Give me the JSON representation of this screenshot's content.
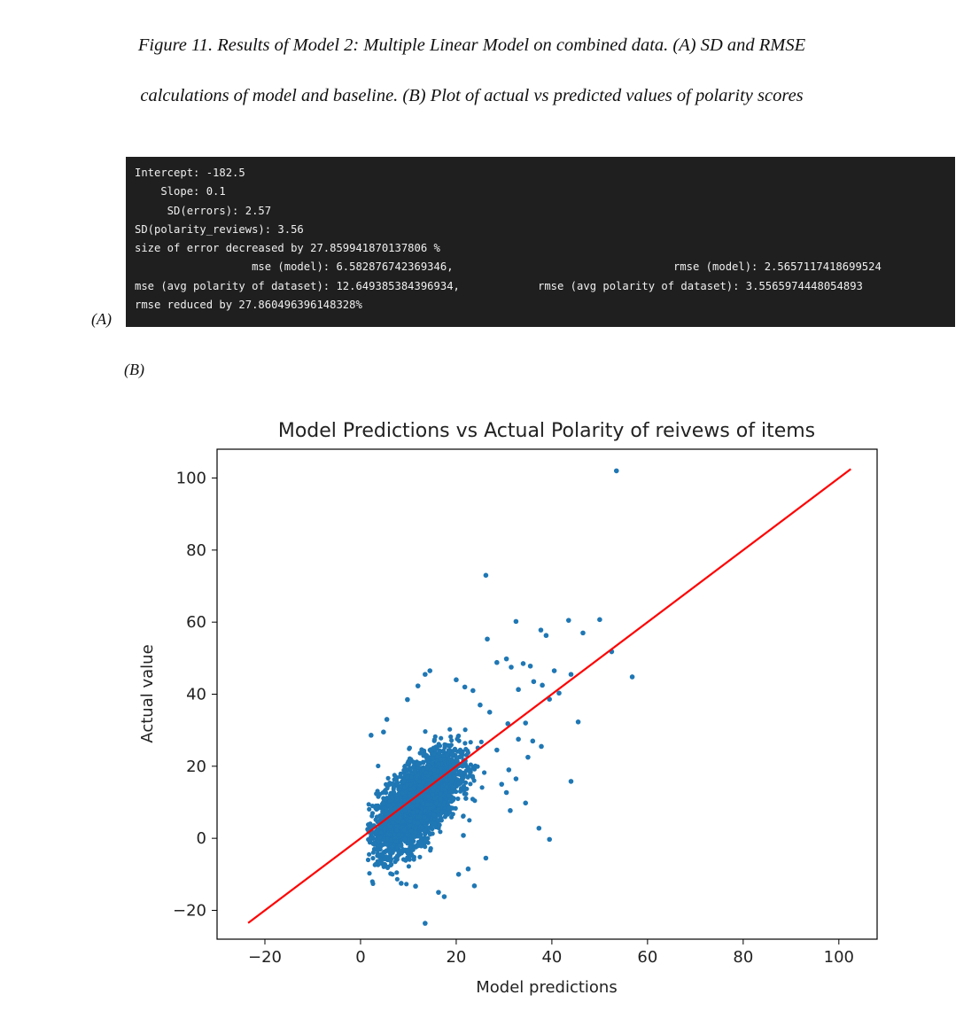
{
  "caption": {
    "line1": "Figure 11. Results of Model 2: Multiple Linear Model on combined data. (A) SD and RMSE",
    "line2": "calculations of model and baseline. (B) Plot of actual vs predicted values of polarity scores"
  },
  "panel_labels": {
    "a": "(A)",
    "b": "(B)"
  },
  "console": {
    "lines": [
      "Intercept: -182.5",
      "    Slope: 0.1",
      "     SD(errors): 2.57",
      "SD(polarity_reviews): 3.56",
      "size of error decreased by 27.859941870137806 %",
      "                  mse (model): 6.582876742369346,",
      "mse (avg polarity of dataset): 12.649385384396934,",
      "rmse reduced by 27.860496396148328%"
    ],
    "right_lines": [
      "rmse (model): 2.5657117418699524",
      "rmse (avg polarity of dataset): 3.5565974448054893"
    ]
  },
  "chart_data": {
    "type": "scatter",
    "title": "Model Predictions vs Actual Polarity of reivews of items",
    "xlabel": "Model predictions",
    "ylabel": "Actual value",
    "xlim": [
      -30,
      108
    ],
    "ylim": [
      -28,
      108
    ],
    "xticks": [
      -20,
      0,
      20,
      40,
      60,
      80,
      100
    ],
    "yticks": [
      -20,
      0,
      20,
      40,
      60,
      80,
      100
    ],
    "xtick_labels": [
      "−20",
      "0",
      "20",
      "40",
      "60",
      "80",
      "100"
    ],
    "ytick_labels": [
      "−20",
      "0",
      "20",
      "40",
      "60",
      "80",
      "100"
    ],
    "point_color": "#1f77b4",
    "line_color": "#ff0000",
    "reference_line": {
      "x": [
        -23.5,
        102.5
      ],
      "y": [
        -23.5,
        102.5
      ]
    },
    "cluster": {
      "center": [
        12,
        10
      ],
      "note": "dense cloud of several thousand points roughly x 2-25, y -13-45"
    },
    "points": [
      [
        53.5,
        102
      ],
      [
        26.2,
        73
      ],
      [
        32.5,
        60.2
      ],
      [
        43.5,
        60.5
      ],
      [
        50,
        60.7
      ],
      [
        37.7,
        57.8
      ],
      [
        38.8,
        56.3
      ],
      [
        26.5,
        55.3
      ],
      [
        46.5,
        57
      ],
      [
        52.5,
        51.8
      ],
      [
        56.8,
        44.8
      ],
      [
        30.5,
        49.8
      ],
      [
        34,
        48.5
      ],
      [
        28.5,
        48.8
      ],
      [
        31.5,
        47.5
      ],
      [
        35.5,
        47.8
      ],
      [
        40.5,
        46.5
      ],
      [
        44,
        45.5
      ],
      [
        36.2,
        43.5
      ],
      [
        38,
        42.5
      ],
      [
        33,
        41.3
      ],
      [
        41.5,
        40.3
      ],
      [
        39.5,
        38.6
      ],
      [
        45.5,
        32.3
      ],
      [
        30.8,
        31.8
      ],
      [
        34.5,
        32
      ],
      [
        36,
        27
      ],
      [
        33,
        27.5
      ],
      [
        37.8,
        25.5
      ],
      [
        28.5,
        24.5
      ],
      [
        35,
        22.5
      ],
      [
        31,
        19
      ],
      [
        32.5,
        16.5
      ],
      [
        44,
        15.8
      ],
      [
        30.5,
        12.7
      ],
      [
        29.5,
        15
      ],
      [
        34.5,
        9.8
      ],
      [
        31.3,
        7.7
      ],
      [
        37.3,
        2.8
      ],
      [
        39.5,
        -0.3
      ],
      [
        26.2,
        -5.5
      ],
      [
        23.8,
        -13.2
      ],
      [
        16.3,
        -15
      ],
      [
        17.5,
        -16.2
      ],
      [
        13.5,
        -23.6
      ],
      [
        8.5,
        -12.5
      ],
      [
        11.5,
        -13.3
      ],
      [
        21.5,
        0.8
      ],
      [
        4.5,
        -7
      ],
      [
        2.8,
        3.5
      ],
      [
        1.5,
        2.5
      ],
      [
        2.2,
        28.6
      ],
      [
        4.8,
        29.5
      ],
      [
        5.5,
        33
      ],
      [
        9.8,
        38.5
      ],
      [
        12,
        42.3
      ],
      [
        14.5,
        46.5
      ],
      [
        13.5,
        45.5
      ],
      [
        20,
        44
      ],
      [
        21.8,
        42
      ],
      [
        23.5,
        41
      ],
      [
        25,
        37
      ],
      [
        27,
        35
      ],
      [
        22.5,
        -8.5
      ],
      [
        20.5,
        -10
      ]
    ]
  }
}
